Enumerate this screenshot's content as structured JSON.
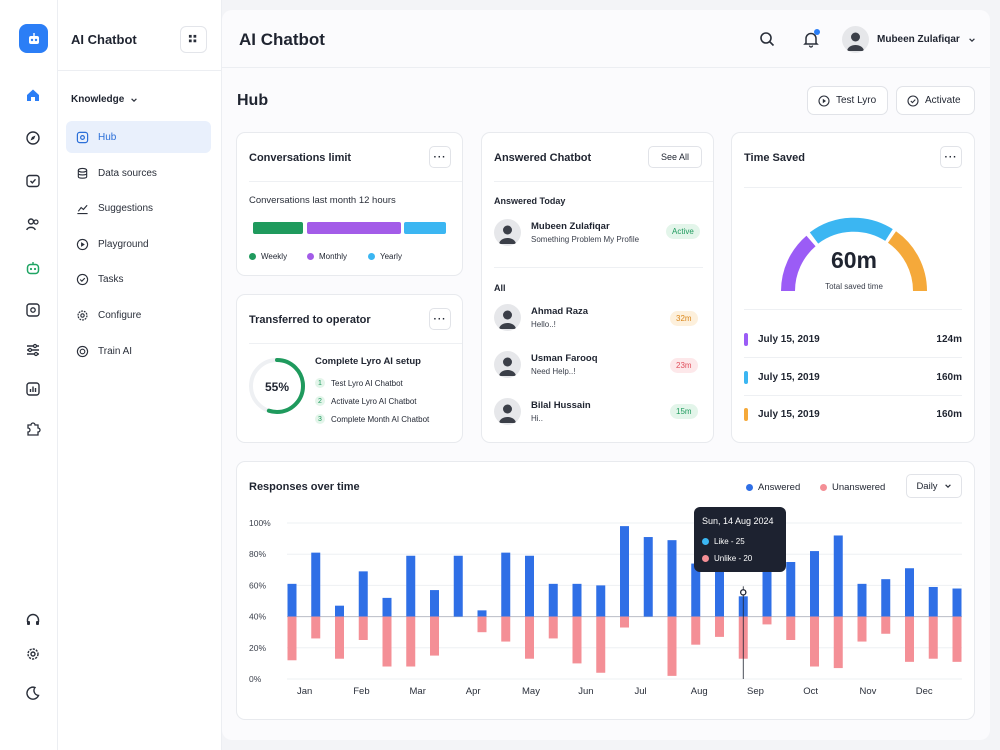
{
  "sidebar": {
    "title": "AI Chatbot",
    "section": "Knowledge",
    "items": [
      {
        "label": "Hub",
        "icon": "hub-icon"
      },
      {
        "label": "Data sources",
        "icon": "database-icon"
      },
      {
        "label": "Suggestions",
        "icon": "trend-icon"
      },
      {
        "label": "Playground",
        "icon": "play-icon"
      },
      {
        "label": "Tasks",
        "icon": "check-circle-icon"
      },
      {
        "label": "Configure",
        "icon": "gear-icon"
      },
      {
        "label": "Train AI",
        "icon": "target-icon"
      }
    ]
  },
  "header": {
    "title": "AI Chatbot",
    "user_name": "Mubeen Zulafiqar"
  },
  "page": {
    "title": "Hub",
    "test_button": "Test Lyro",
    "activate_button": "Activate"
  },
  "conversations_limit": {
    "title": "Conversations limit",
    "subtitle": "Conversations last month 12 hours",
    "legend": [
      "Weekly",
      "Monthly",
      "Yearly"
    ]
  },
  "transferred": {
    "title": "Transferred to operator",
    "percent": "55%",
    "progress": 0.55,
    "setup_title": "Complete Lyro AI setup",
    "steps": [
      {
        "num": "1",
        "label": "Test Lyro AI Chatbot"
      },
      {
        "num": "2",
        "label": "Activate Lyro AI Chatbot"
      },
      {
        "num": "3",
        "label": "Complete Month AI Chatbot"
      }
    ]
  },
  "answered": {
    "title": "Answered Chatbot",
    "see_all": "See All",
    "today_label": "Answered Today",
    "today": {
      "name": "Mubeen Zulafiqar",
      "message": "Something Problem My Profile",
      "badge": "Active"
    },
    "all_label": "All",
    "all": [
      {
        "name": "Ahmad Raza",
        "message": "Hello..!",
        "badge": "32m"
      },
      {
        "name": "Usman Farooq",
        "message": "Need Help..!",
        "badge": "23m"
      },
      {
        "name": "Bilal Hussain",
        "message": "Hi..",
        "badge": "15m"
      }
    ]
  },
  "time_saved": {
    "title": "Time Saved",
    "value": "60m",
    "caption": "Total saved time",
    "rows": [
      {
        "date": "July 15, 2019",
        "value": "124m",
        "color": "#9b5cf6"
      },
      {
        "date": "July 15, 2019",
        "value": "160m",
        "color": "#3bb6f2"
      },
      {
        "date": "July 15, 2019",
        "value": "160m",
        "color": "#f5a93a"
      }
    ]
  },
  "responses": {
    "title": "Responses over time",
    "legend_answered": "Answered",
    "legend_unanswered": "Unanswered",
    "dropdown": "Daily",
    "tooltip": {
      "date": "Sun, 14 Aug 2024",
      "like": "Like - 25",
      "unlike": "Unlike - 20"
    }
  },
  "colors": {
    "accent": "#2b7ef6",
    "answered": "#2f6fe6",
    "unanswered": "#f48f96"
  },
  "chart_data": {
    "type": "bar",
    "title": "Responses over time",
    "ylim": [
      0,
      100
    ],
    "yticks": [
      "100%",
      "80%",
      "60%",
      "40%",
      "20%",
      "0%"
    ],
    "months": [
      "Jan",
      "Feb",
      "Mar",
      "Apr",
      "May",
      "Jun",
      "Jul",
      "Aug",
      "Sep",
      "Oct",
      "Nov",
      "Dec"
    ],
    "series": [
      {
        "name": "Answered",
        "values": [
          61,
          81,
          47,
          69,
          52,
          79,
          57,
          79,
          44,
          81,
          79,
          61,
          61,
          60,
          98,
          91,
          89,
          74,
          69,
          53,
          74,
          75,
          82,
          92,
          61,
          64,
          71,
          59,
          58
        ]
      },
      {
        "name": "Unanswered",
        "values": [
          12,
          26,
          13,
          25,
          8,
          8,
          15,
          0,
          30,
          24,
          13,
          26,
          10,
          4,
          33,
          0,
          2,
          22,
          27,
          13,
          35,
          25,
          8,
          7,
          24,
          29,
          11,
          13,
          11
        ]
      }
    ]
  }
}
